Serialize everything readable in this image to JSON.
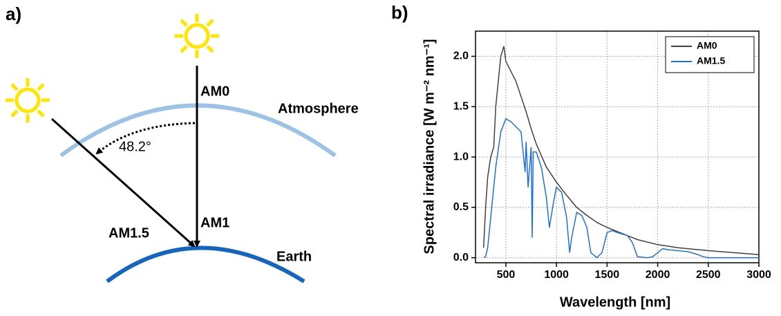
{
  "diagram": {
    "panel_label": "a)",
    "labels": {
      "am0": "AM0",
      "atmosphere": "Atmosphere",
      "angle": "48.2°",
      "am15": "AM1.5",
      "am1": "AM1",
      "earth": "Earth"
    }
  },
  "chart_data": {
    "type": "line",
    "panel_label": "b)",
    "x_label": "Wavelength [nm]",
    "y_label": "Spectral irradiance [W m⁻² nm⁻¹]",
    "xlim": [
      200,
      3000
    ],
    "xticks": [
      500,
      1000,
      1500,
      2000,
      2500,
      3000
    ],
    "ylim": [
      -0.05,
      2.25
    ],
    "yticks": [
      {
        "value": 0,
        "label": "0.0"
      },
      {
        "value": 0.5,
        "label": "0.5"
      },
      {
        "value": 1,
        "label": "1.0"
      },
      {
        "value": 1.5,
        "label": "1.5"
      },
      {
        "value": 2,
        "label": "2.0"
      }
    ],
    "grid": true,
    "legend": "upper right",
    "series": [
      {
        "name": "AM0",
        "color": "#404040",
        "x": [
          280,
          300,
          320,
          350,
          380,
          400,
          420,
          450,
          480,
          500,
          550,
          600,
          650,
          700,
          750,
          800,
          900,
          1000,
          1100,
          1200,
          1300,
          1400,
          1500,
          1600,
          1700,
          1800,
          2000,
          2200,
          2500,
          3000
        ],
        "values": [
          0.1,
          0.5,
          0.8,
          1.0,
          1.1,
          1.5,
          1.7,
          2.0,
          2.1,
          1.95,
          1.85,
          1.75,
          1.6,
          1.45,
          1.28,
          1.13,
          0.9,
          0.75,
          0.62,
          0.5,
          0.42,
          0.35,
          0.3,
          0.26,
          0.22,
          0.18,
          0.13,
          0.1,
          0.07,
          0.03
        ]
      },
      {
        "name": "AM1.5",
        "color": "#1e6fd9",
        "x": [
          280,
          300,
          320,
          350,
          400,
          450,
          500,
          550,
          600,
          650,
          690,
          700,
          720,
          750,
          760,
          770,
          800,
          850,
          900,
          930,
          970,
          1000,
          1050,
          1100,
          1130,
          1150,
          1200,
          1250,
          1300,
          1340,
          1400,
          1450,
          1500,
          1550,
          1600,
          1700,
          1750,
          1800,
          1900,
          1950,
          2000,
          2050,
          2100,
          2200,
          2300,
          2400,
          2450,
          2500,
          3000
        ],
        "values": [
          0,
          0.01,
          0.1,
          0.4,
          0.9,
          1.25,
          1.38,
          1.35,
          1.3,
          1.25,
          0.85,
          1.15,
          0.7,
          1.1,
          0.2,
          1.05,
          1.05,
          0.9,
          0.6,
          0.3,
          0.55,
          0.7,
          0.65,
          0.4,
          0.05,
          0.2,
          0.45,
          0.42,
          0.3,
          0.05,
          0,
          0.05,
          0.25,
          0.27,
          0.25,
          0.22,
          0.15,
          0.01,
          0,
          0.01,
          0.05,
          0.09,
          0.08,
          0.07,
          0.06,
          0.03,
          0.01,
          0,
          0
        ]
      }
    ]
  }
}
